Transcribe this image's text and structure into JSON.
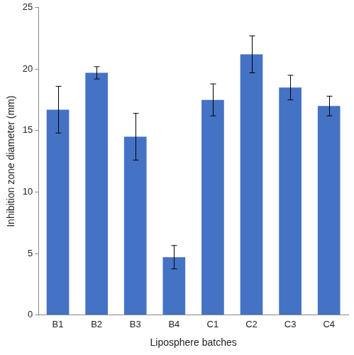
{
  "chart_data": {
    "type": "bar",
    "x_label": "Liposphere batches",
    "y_label": "Inhibition zone diameter (mm)",
    "categories": [
      "B1",
      "B2",
      "B3",
      "B4",
      "C1",
      "C2",
      "C3",
      "C4"
    ],
    "values": [
      16.7,
      19.7,
      14.5,
      4.7,
      17.5,
      21.2,
      18.5,
      17.0
    ],
    "errors": [
      1.9,
      0.5,
      1.9,
      0.95,
      1.3,
      1.5,
      1.0,
      0.8
    ],
    "color": "#4472c4",
    "ylim": [
      0,
      25
    ],
    "yticks": [
      0,
      5,
      10,
      15,
      20,
      25
    ],
    "grid": false
  }
}
